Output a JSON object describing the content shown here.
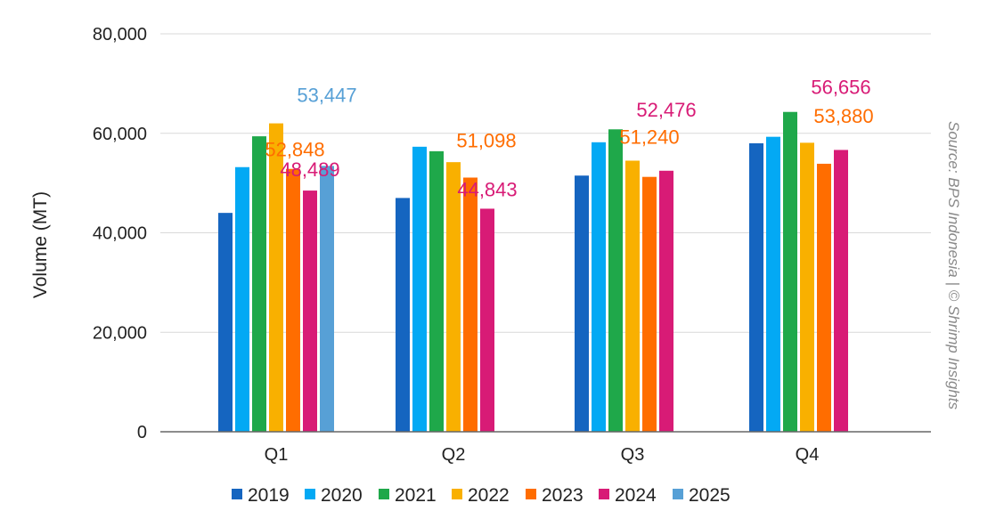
{
  "chart_data": {
    "type": "bar",
    "title": "",
    "xlabel": "",
    "ylabel": "Volume (MT)",
    "ylim": [
      0,
      80000
    ],
    "yticks": [
      0,
      20000,
      40000,
      60000,
      80000
    ],
    "ytick_labels": [
      "0",
      "20,000",
      "40,000",
      "60,000",
      "80,000"
    ],
    "grid": true,
    "legend_position": "bottom",
    "categories": [
      "Q1",
      "Q2",
      "Q3",
      "Q4"
    ],
    "series": [
      {
        "name": "2019",
        "color": "#1565c0",
        "values": [
          44000,
          47000,
          51500,
          58000
        ]
      },
      {
        "name": "2020",
        "color": "#03a9f4",
        "values": [
          53200,
          57300,
          58200,
          59300
        ]
      },
      {
        "name": "2021",
        "color": "#1fa84a",
        "values": [
          59400,
          56400,
          60800,
          64300
        ]
      },
      {
        "name": "2022",
        "color": "#f9b000",
        "values": [
          62000,
          54200,
          54500,
          58100
        ]
      },
      {
        "name": "2023",
        "color": "#ff6d00",
        "values": [
          52848,
          51098,
          51240,
          53880
        ]
      },
      {
        "name": "2024",
        "color": "#d81b76",
        "values": [
          48489,
          44843,
          52476,
          56656
        ]
      },
      {
        "name": "2025",
        "color": "#57a0d6",
        "values": [
          53447,
          null,
          null,
          null
        ]
      }
    ],
    "data_labels": [
      {
        "series": "2023",
        "category": "Q1",
        "text": "52,848"
      },
      {
        "series": "2024",
        "category": "Q1",
        "text": "48,489"
      },
      {
        "series": "2025",
        "category": "Q1",
        "text": "53,447"
      },
      {
        "series": "2023",
        "category": "Q2",
        "text": "51,098"
      },
      {
        "series": "2024",
        "category": "Q2",
        "text": "44,843"
      },
      {
        "series": "2023",
        "category": "Q3",
        "text": "51,240"
      },
      {
        "series": "2024",
        "category": "Q3",
        "text": "52,476"
      },
      {
        "series": "2023",
        "category": "Q4",
        "text": "53,880"
      },
      {
        "series": "2024",
        "category": "Q4",
        "text": "56,656"
      }
    ],
    "source_note": "Source: BPS Indonesia | © Shrimp Insights"
  }
}
